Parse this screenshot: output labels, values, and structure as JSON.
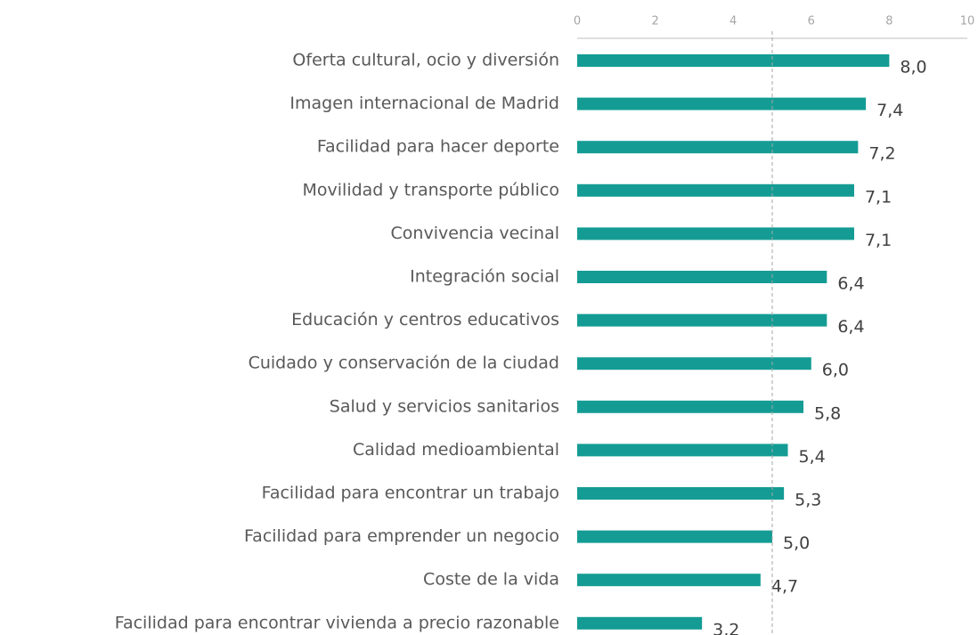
{
  "chart_data": {
    "type": "hbar",
    "categories": [
      "Oferta cultural, ocio y diversión",
      "Imagen internacional de Madrid",
      "Facilidad para hacer deporte",
      "Movilidad y transporte público",
      "Convivencia vecinal",
      "Integración social",
      "Educación y centros educativos",
      "Cuidado y conservación de la ciudad",
      "Salud y servicios sanitarios",
      "Calidad medioambiental",
      "Facilidad para encontrar un trabajo",
      "Facilidad para emprender un negocio",
      "Coste de la vida",
      "Facilidad para encontrar vivienda a precio razonable"
    ],
    "values": [
      8.0,
      7.4,
      7.2,
      7.1,
      7.1,
      6.4,
      6.4,
      6.0,
      5.8,
      5.4,
      5.3,
      5.0,
      4.7,
      3.2
    ],
    "value_labels": [
      "8,0",
      "7,4",
      "7,2",
      "7,1",
      "7,1",
      "6,4",
      "6,4",
      "6,0",
      "5,8",
      "5,4",
      "5,3",
      "5,0",
      "4,7",
      "3,2"
    ],
    "color": "#149c94",
    "xlim": [
      0,
      10
    ],
    "xticks": [
      0,
      2,
      4,
      6,
      8,
      10
    ],
    "reference_line": 5
  }
}
